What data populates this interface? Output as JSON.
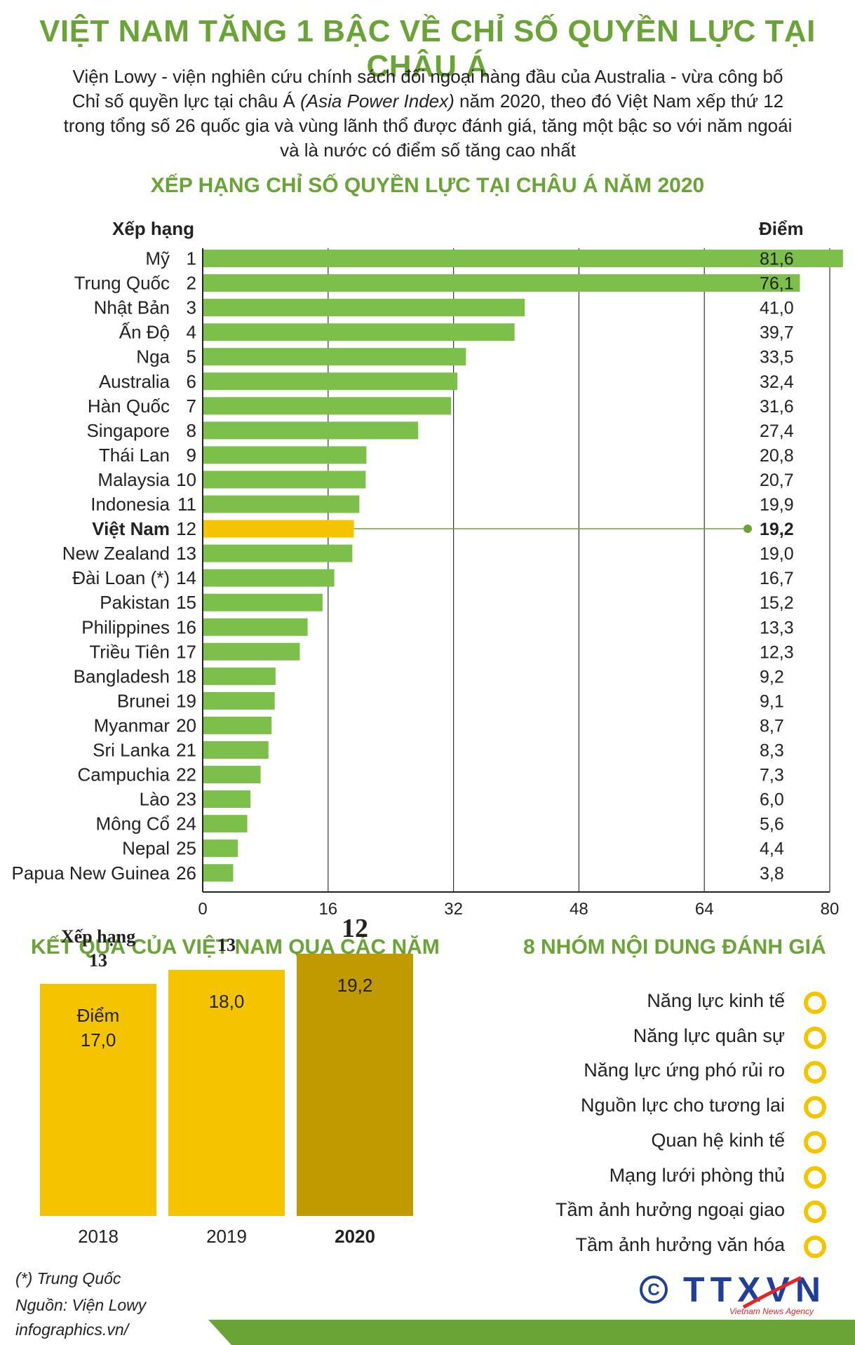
{
  "header": {
    "title": "VIỆT NAM TĂNG 1 BẬC VỀ CHỈ SỐ QUYỀN LỰC TẠI CHÂU Á",
    "intro_line1": "Viện Lowy - viện nghiên cứu chính sách đối ngoại hàng đầu của Australia - vừa công bố",
    "intro_line2_a": "Chỉ số quyền lực tại châu Á ",
    "intro_line2_i": "(Asia Power Index)",
    "intro_line2_b": " năm 2020, theo đó Việt Nam xếp thứ 12",
    "intro_line3": "trong tổng số 26 quốc gia và vùng lãnh thổ được đánh giá, tăng một bậc so với năm ngoái",
    "intro_line4": "và là nước có điểm số tăng cao nhất"
  },
  "chart_data": [
    {
      "type": "bar",
      "orientation": "horizontal",
      "title": "XẾP HẠNG CHỈ SỐ QUYỀN LỰC TẠI CHÂU Á NĂM 2020",
      "rank_header": "Xếp hạng",
      "score_header": "Điểm",
      "xlim": [
        0,
        80
      ],
      "xticks": [
        "0",
        "16",
        "32",
        "48",
        "64",
        "80"
      ],
      "grid": true,
      "highlight": "Việt Nam",
      "colors": {
        "bar": "#7cc04b",
        "highlight": "#f5c400",
        "axis": "#222222",
        "leader": "#6aa336"
      },
      "rows": [
        {
          "name": "Mỹ",
          "rank": "1",
          "value": 81.6,
          "label": "81,6"
        },
        {
          "name": "Trung Quốc",
          "rank": "2",
          "value": 76.1,
          "label": "76,1"
        },
        {
          "name": "Nhật Bản",
          "rank": "3",
          "value": 41.0,
          "label": "41,0"
        },
        {
          "name": "Ấn Độ",
          "rank": "4",
          "value": 39.7,
          "label": "39,7"
        },
        {
          "name": "Nga",
          "rank": "5",
          "value": 33.5,
          "label": "33,5"
        },
        {
          "name": "Australia",
          "rank": "6",
          "value": 32.4,
          "label": "32,4"
        },
        {
          "name": "Hàn Quốc",
          "rank": "7",
          "value": 31.6,
          "label": "31,6"
        },
        {
          "name": "Singapore",
          "rank": "8",
          "value": 27.4,
          "label": "27,4"
        },
        {
          "name": "Thái Lan",
          "rank": "9",
          "value": 20.8,
          "label": "20,8"
        },
        {
          "name": "Malaysia",
          "rank": "10",
          "value": 20.7,
          "label": "20,7"
        },
        {
          "name": "Indonesia",
          "rank": "11",
          "value": 19.9,
          "label": "19,9"
        },
        {
          "name": "Việt Nam",
          "rank": "12",
          "value": 19.2,
          "label": "19,2"
        },
        {
          "name": "New Zealand",
          "rank": "13",
          "value": 19.0,
          "label": "19,0"
        },
        {
          "name": "Đài Loan (*)",
          "rank": "14",
          "value": 16.7,
          "label": "16,7"
        },
        {
          "name": "Pakistan",
          "rank": "15",
          "value": 15.2,
          "label": "15,2"
        },
        {
          "name": "Philippines",
          "rank": "16",
          "value": 13.3,
          "label": "13,3"
        },
        {
          "name": "Triều Tiên",
          "rank": "17",
          "value": 12.3,
          "label": "12,3"
        },
        {
          "name": "Bangladesh",
          "rank": "18",
          "value": 9.2,
          "label": "9,2"
        },
        {
          "name": "Brunei",
          "rank": "19",
          "value": 9.1,
          "label": "9,1"
        },
        {
          "name": "Myanmar",
          "rank": "20",
          "value": 8.7,
          "label": "8,7"
        },
        {
          "name": "Sri Lanka",
          "rank": "21",
          "value": 8.3,
          "label": "8,3"
        },
        {
          "name": "Campuchia",
          "rank": "22",
          "value": 7.3,
          "label": "7,3"
        },
        {
          "name": "Lào",
          "rank": "23",
          "value": 6.0,
          "label": "6,0"
        },
        {
          "name": "Mông Cổ",
          "rank": "24",
          "value": 5.6,
          "label": "5,6"
        },
        {
          "name": "Nepal",
          "rank": "25",
          "value": 4.4,
          "label": "4,4"
        },
        {
          "name": "Papua New Guinea",
          "rank": "26",
          "value": 3.8,
          "label": "3,8"
        }
      ]
    },
    {
      "type": "bar",
      "title": "KẾT QUẢ CỦA VIỆT NAM QUA CÁC NĂM",
      "rank_label": "Xếp hạng",
      "score_label": "Điểm",
      "ylim": [
        0,
        20
      ],
      "colors": {
        "past": "#f5c400",
        "current": "#c19a00"
      },
      "years": [
        {
          "year": "2018",
          "rank": "13",
          "value": 17.0,
          "score": "17,0"
        },
        {
          "year": "2019",
          "rank": "13",
          "value": 18.0,
          "score": "18,0"
        },
        {
          "year": "2020",
          "rank": "12",
          "value": 19.2,
          "score": "19,2"
        }
      ]
    }
  ],
  "groups": {
    "title": "8 NHÓM NỘI DUNG ĐÁNH GIÁ",
    "dot_color": "#f5c400",
    "items": [
      "Năng lực kinh tế",
      "Năng lực quân sự",
      "Năng lực ứng phó rủi ro",
      "Nguồn lực cho tương lai",
      "Quan hệ kinh tế",
      "Mạng lưới phòng thủ",
      "Tầm ảnh hưởng ngoại giao",
      "Tầm ảnh hưởng văn hóa"
    ]
  },
  "footer": {
    "note": "(*) Trung Quốc",
    "source": "Nguồn: Viện Lowy",
    "site": "infographics.vn/",
    "logo_text": "TTXVN",
    "logo_sub": "Vietnam News Agency",
    "brand_color": "#1f3f99"
  }
}
